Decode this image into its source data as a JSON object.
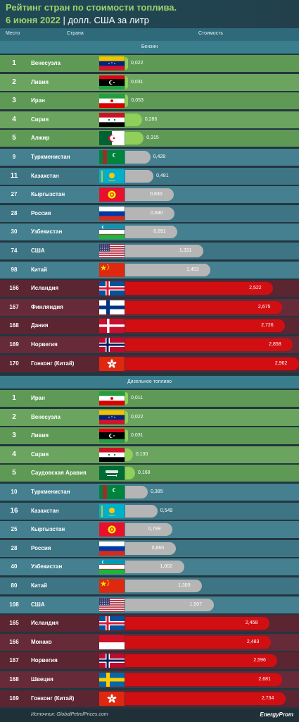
{
  "header": {
    "title": "Рейтинг стран по стоимости топлива.",
    "date": "6 июня 2022",
    "separator": "|",
    "unit": "долл. США за литр"
  },
  "columns": {
    "rank": "Место",
    "country": "Страна",
    "cost": "Стоимость"
  },
  "footer": {
    "source": "Источник: GlobalPetrolPrices.com",
    "brand": "EnergyProm"
  },
  "colors": {
    "top_bar": "#8fcf5a",
    "mid_bar": "#b5b5b5",
    "high_bar": "#d10f12"
  },
  "chart_data": [
    {
      "type": "bar",
      "title": "Бензин",
      "max": 3.0,
      "rows": [
        {
          "rank": "1",
          "country": "Венесуэла",
          "flag": "venezuela",
          "value": 0.022,
          "label": "0,022",
          "group": "top"
        },
        {
          "rank": "2",
          "country": "Ливия",
          "flag": "libya",
          "value": 0.031,
          "label": "0,031",
          "group": "top"
        },
        {
          "rank": "3",
          "country": "Иран",
          "flag": "iran",
          "value": 0.053,
          "label": "0,053",
          "group": "top"
        },
        {
          "rank": "4",
          "country": "Сирия",
          "flag": "syria",
          "value": 0.286,
          "label": "0,286",
          "group": "top"
        },
        {
          "rank": "5",
          "country": "Алжир",
          "flag": "algeria",
          "value": 0.315,
          "label": "0,315",
          "group": "top"
        },
        {
          "rank": "9",
          "country": "Туркменистан",
          "flag": "turkmenistan",
          "value": 0.428,
          "label": "0,428",
          "group": "mid"
        },
        {
          "rank": "11",
          "country": "Казахстан",
          "flag": "kazakhstan",
          "value": 0.481,
          "label": "0,481",
          "group": "mid",
          "highlight": true
        },
        {
          "rank": "27",
          "country": "Кыргызстан",
          "flag": "kyrgyzstan",
          "value": 0.83,
          "label": "0,830",
          "group": "mid"
        },
        {
          "rank": "28",
          "country": "Россия",
          "flag": "russia",
          "value": 0.84,
          "label": "0,840",
          "group": "mid"
        },
        {
          "rank": "30",
          "country": "Узбекистан",
          "flag": "uzbekistan",
          "value": 0.891,
          "label": "0,891",
          "group": "mid"
        },
        {
          "rank": "74",
          "country": "США",
          "flag": "usa",
          "value": 1.331,
          "label": "1,331",
          "group": "mid"
        },
        {
          "rank": "98",
          "country": "Китай",
          "flag": "china",
          "value": 1.453,
          "label": "1,453",
          "group": "mid"
        },
        {
          "rank": "166",
          "country": "Исландия",
          "flag": "iceland",
          "value": 2.522,
          "label": "2,522",
          "group": "high"
        },
        {
          "rank": "167",
          "country": "Финляндия",
          "flag": "finland",
          "value": 2.675,
          "label": "2,675",
          "group": "high"
        },
        {
          "rank": "168",
          "country": "Дания",
          "flag": "denmark",
          "value": 2.726,
          "label": "2,726",
          "group": "high"
        },
        {
          "rank": "169",
          "country": "Норвегия",
          "flag": "norway",
          "value": 2.858,
          "label": "2,858",
          "group": "high"
        },
        {
          "rank": "170",
          "country": "Гонконг (Китай)",
          "flag": "hongkong",
          "value": 2.962,
          "label": "2,962",
          "group": "high"
        }
      ]
    },
    {
      "type": "bar",
      "title": "Дизельное топливо",
      "max": 3.0,
      "rows": [
        {
          "rank": "1",
          "country": "Иран",
          "flag": "iran",
          "value": 0.011,
          "label": "0,011",
          "group": "top"
        },
        {
          "rank": "2",
          "country": "Венесуэла",
          "flag": "venezuela",
          "value": 0.022,
          "label": "0,022",
          "group": "top"
        },
        {
          "rank": "3",
          "country": "Ливия",
          "flag": "libya",
          "value": 0.031,
          "label": "0,031",
          "group": "top"
        },
        {
          "rank": "4",
          "country": "Сирия",
          "flag": "syria",
          "value": 0.13,
          "label": "0,130",
          "group": "top"
        },
        {
          "rank": "5",
          "country": "Саудовская Аравия",
          "flag": "saudi",
          "value": 0.168,
          "label": "0,168",
          "group": "top"
        },
        {
          "rank": "10",
          "country": "Туркменистан",
          "flag": "turkmenistan",
          "value": 0.385,
          "label": "0,385",
          "group": "mid"
        },
        {
          "rank": "16",
          "country": "Казахстан",
          "flag": "kazakhstan",
          "value": 0.549,
          "label": "0,549",
          "group": "mid",
          "highlight": true
        },
        {
          "rank": "25",
          "country": "Кыргызстан",
          "flag": "kyrgyzstan",
          "value": 0.799,
          "label": "0,799",
          "group": "mid"
        },
        {
          "rank": "28",
          "country": "Россия",
          "flag": "russia",
          "value": 0.86,
          "label": "0,860",
          "group": "mid"
        },
        {
          "rank": "40",
          "country": "Узбекистан",
          "flag": "uzbekistan",
          "value": 1.002,
          "label": "1,002",
          "group": "mid"
        },
        {
          "rank": "80",
          "country": "Китай",
          "flag": "china",
          "value": 1.309,
          "label": "1,309",
          "group": "mid"
        },
        {
          "rank": "108",
          "country": "США",
          "flag": "usa",
          "value": 1.507,
          "label": "1,507",
          "group": "mid"
        },
        {
          "rank": "165",
          "country": "Исландия",
          "flag": "iceland",
          "value": 2.458,
          "label": "2,458",
          "group": "high"
        },
        {
          "rank": "166",
          "country": "Монако",
          "flag": "monaco",
          "value": 2.483,
          "label": "2,483",
          "group": "high"
        },
        {
          "rank": "167",
          "country": "Норвегия",
          "flag": "norway",
          "value": 2.596,
          "label": "2,596",
          "group": "high"
        },
        {
          "rank": "168",
          "country": "Швеция",
          "flag": "sweden",
          "value": 2.681,
          "label": "2,681",
          "group": "high"
        },
        {
          "rank": "169",
          "country": "Гонконг (Китай)",
          "flag": "hongkong",
          "value": 2.734,
          "label": "2,734",
          "group": "high"
        }
      ]
    }
  ]
}
